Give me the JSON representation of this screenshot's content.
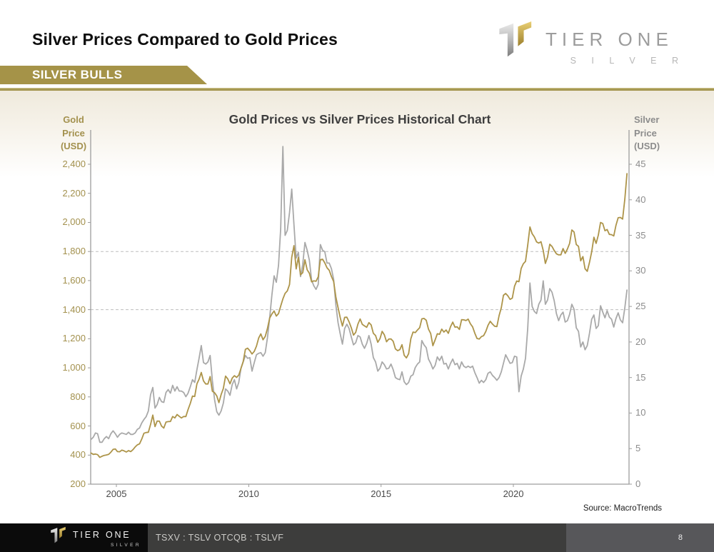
{
  "header": {
    "title": "Silver Prices Compared to Gold Prices",
    "banner_label": "SILVER BULLS"
  },
  "brand": {
    "name": "TIER ONE",
    "sub": "S I L V E R"
  },
  "footer": {
    "tickers": "TSXV : TSLV  OTCQB : TSLVF",
    "page_number": "8",
    "brand_name": "TIER ONE",
    "brand_sub": "SILVER"
  },
  "colors": {
    "banner_gold": "#a59348",
    "gold_line": "#ad9449",
    "silver_line": "#a9a9a9",
    "axis": "#9d9d9d",
    "gridline": "#bdbdbd",
    "gold_text": "#a3914e",
    "gray_text": "#8c8c8c",
    "footer_black": "#0b0b0b",
    "footer_mid": "#3d3d3c",
    "footer_right_panel": "#57575a"
  },
  "chart_data": {
    "type": "line",
    "title": "Gold Prices vs Silver Prices Historical Chart",
    "source": "Source: MacroTrends",
    "legend": "none",
    "x_start_year": 2004,
    "x_step_months": 1,
    "x_axis": {
      "range": [
        2004.0,
        2024.33
      ],
      "tick_values": [
        2005,
        2010,
        2015,
        2020
      ],
      "tick_labels": [
        "2005",
        "2010",
        "2015",
        "2020"
      ]
    },
    "left_axis": {
      "label": "Gold\nPrice\n(USD)",
      "min": 200,
      "max": 2400,
      "tick_values": [
        2400,
        2200,
        2000,
        1800,
        1600,
        1400,
        1200,
        1000,
        800,
        600,
        400,
        200
      ],
      "tick_labels": [
        "2,400",
        "2,200",
        "2,000",
        "1,800",
        "1,600",
        "1,400",
        "1,200",
        "1,000",
        "800",
        "600",
        "400",
        "200"
      ]
    },
    "right_axis": {
      "label": "Silver\nPrice\n(USD)",
      "min": 0,
      "max": 45,
      "tick_values": [
        45,
        40,
        35,
        30,
        25,
        20,
        15,
        10,
        5,
        0
      ],
      "tick_labels": [
        "45",
        "40",
        "35",
        "30",
        "25",
        "20",
        "15",
        "10",
        "5",
        "0"
      ]
    },
    "gridlines": {
      "axis": "left",
      "style": "dashed",
      "values": [
        1800,
        1400
      ]
    },
    "series": [
      {
        "name": "Gold Price (USD)",
        "key": "gold",
        "axis": "left",
        "color": "#ad9449",
        "values": [
          414,
          405,
          407,
          403,
          384,
          392,
          398,
          401,
          405,
          420,
          439,
          442,
          424,
          423,
          434,
          429,
          421,
          431,
          424,
          437,
          456,
          470,
          477,
          510,
          550,
          555,
          557,
          611,
          675,
          596,
          634,
          633,
          599,
          586,
          627,
          630,
          631,
          665,
          655,
          679,
          667,
          655,
          665,
          665,
          713,
          755,
          806,
          803,
          890,
          922,
          968,
          910,
          889,
          889,
          940,
          839,
          829,
          807,
          761,
          816,
          858,
          943,
          924,
          890,
          929,
          946,
          934,
          950,
          996,
          1043,
          1127,
          1135,
          1118,
          1095,
          1113,
          1149,
          1205,
          1233,
          1193,
          1216,
          1271,
          1342,
          1370,
          1391,
          1356,
          1373,
          1424,
          1474,
          1512,
          1529,
          1573,
          1760,
          1840,
          1680,
          1760,
          1640,
          1654,
          1743,
          1674,
          1650,
          1591,
          1598,
          1595,
          1626,
          1744,
          1747,
          1722,
          1688,
          1671,
          1628,
          1593,
          1487,
          1414,
          1343,
          1287,
          1347,
          1348,
          1316,
          1276,
          1225,
          1244,
          1301,
          1336,
          1299,
          1288,
          1279,
          1311,
          1295,
          1237,
          1222,
          1176,
          1201,
          1251,
          1227,
          1179,
          1198,
          1199,
          1182,
          1130,
          1118,
          1125,
          1159,
          1086,
          1068,
          1097,
          1200,
          1246,
          1242,
          1260,
          1276,
          1337,
          1340,
          1327,
          1266,
          1236,
          1152,
          1192,
          1234,
          1231,
          1266,
          1246,
          1260,
          1237,
          1283,
          1314,
          1280,
          1282,
          1264,
          1331,
          1330,
          1325,
          1335,
          1303,
          1282,
          1238,
          1202,
          1198,
          1215,
          1221,
          1250,
          1292,
          1320,
          1301,
          1286,
          1284,
          1359,
          1413,
          1499,
          1511,
          1495,
          1471,
          1479,
          1561,
          1597,
          1592,
          1683,
          1716,
          1732,
          1843,
          1969,
          1922,
          1900,
          1866,
          1858,
          1867,
          1808,
          1718,
          1762,
          1850,
          1835,
          1807,
          1784,
          1777,
          1777,
          1820,
          1787,
          1817,
          1856,
          1948,
          1934,
          1848,
          1836,
          1736,
          1765,
          1681,
          1664,
          1725,
          1798,
          1898,
          1856,
          1913,
          2000,
          1992,
          1943,
          1951,
          1918,
          1916,
          1907,
          1980,
          2032,
          2034,
          2023,
          2160,
          2335
        ]
      },
      {
        "name": "Silver Price (USD)",
        "key": "silver",
        "axis": "right",
        "color": "#a9a9a9",
        "values": [
          6.3,
          6.6,
          7.2,
          7.1,
          5.9,
          5.9,
          6.4,
          6.7,
          6.4,
          7.1,
          7.5,
          7.1,
          6.6,
          7.0,
          7.2,
          7.1,
          7.0,
          7.3,
          7.0,
          7.0,
          7.2,
          7.7,
          7.9,
          8.6,
          9.1,
          9.5,
          10.3,
          12.6,
          13.6,
          10.7,
          11.2,
          12.2,
          11.6,
          11.5,
          12.9,
          13.3,
          12.8,
          13.9,
          13.1,
          13.7,
          13.1,
          13.1,
          12.9,
          12.3,
          12.8,
          13.7,
          14.7,
          14.3,
          16.1,
          17.7,
          19.5,
          17.1,
          16.9,
          17.2,
          18.1,
          14.6,
          11.9,
          10.2,
          9.7,
          10.3,
          11.4,
          13.4,
          13.1,
          12.5,
          14.0,
          14.7,
          13.4,
          14.3,
          16.3,
          17.2,
          18.1,
          17.7,
          17.8,
          15.9,
          17.1,
          18.2,
          18.4,
          18.5,
          18.0,
          18.5,
          20.6,
          23.4,
          26.6,
          29.3,
          28.4,
          30.8,
          35.9,
          47.5,
          35.0,
          35.7,
          38.2,
          41.5,
          36.5,
          31.8,
          32.6,
          29.2,
          30.9,
          34.0,
          32.9,
          31.5,
          28.7,
          27.9,
          27.4,
          28.1,
          33.7,
          32.9,
          32.7,
          31.1,
          31.1,
          30.3,
          28.8,
          25.2,
          22.7,
          21.1,
          19.7,
          21.9,
          22.5,
          21.9,
          20.7,
          19.6,
          19.9,
          20.9,
          20.7,
          19.7,
          19.1,
          19.8,
          20.9,
          19.7,
          17.8,
          17.2,
          15.9,
          16.3,
          17.2,
          16.8,
          16.2,
          16.3,
          16.9,
          16.1,
          15.0,
          14.8,
          14.7,
          15.8,
          14.4,
          14.0,
          14.3,
          15.2,
          15.4,
          16.4,
          16.9,
          17.2,
          20.2,
          19.6,
          19.2,
          17.6,
          17.0,
          16.2,
          16.7,
          17.9,
          17.4,
          18.0,
          16.9,
          17.0,
          16.2,
          17.0,
          17.6,
          16.8,
          17.0,
          16.2,
          17.2,
          16.6,
          16.4,
          16.6,
          16.4,
          16.6,
          15.7,
          15.0,
          14.2,
          14.6,
          14.3,
          14.7,
          15.6,
          15.8,
          15.3,
          15.0,
          14.6,
          15.0,
          15.8,
          17.0,
          18.2,
          17.6,
          17.0,
          17.1,
          18.0,
          17.9,
          13.0,
          15.2,
          16.2,
          17.7,
          21.9,
          28.3,
          25.0,
          24.3,
          24.0,
          25.3,
          25.9,
          28.6,
          25.3,
          25.9,
          27.5,
          27.0,
          25.8,
          24.0,
          23.0,
          23.8,
          24.2,
          22.8,
          23.0,
          23.9,
          25.3,
          24.6,
          22.0,
          21.5,
          19.3,
          20.0,
          18.9,
          19.5,
          21.2,
          23.2,
          23.8,
          21.9,
          22.3,
          25.1,
          24.2,
          23.4,
          24.4,
          23.5,
          23.2,
          22.1,
          23.3,
          24.1,
          23.1,
          22.7,
          24.8,
          27.3
        ]
      }
    ]
  }
}
